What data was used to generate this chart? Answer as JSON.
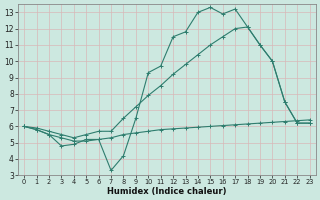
{
  "background_color": "#cce8e0",
  "grid_color": "#b8d8d0",
  "line_color": "#2e7d6e",
  "xlabel": "Humidex (Indice chaleur)",
  "xlim": [
    -0.5,
    23.5
  ],
  "ylim": [
    3,
    13.5
  ],
  "xticks": [
    0,
    1,
    2,
    3,
    4,
    5,
    6,
    7,
    8,
    9,
    10,
    11,
    12,
    13,
    14,
    15,
    16,
    17,
    18,
    19,
    20,
    21,
    22,
    23
  ],
  "yticks": [
    3,
    4,
    5,
    6,
    7,
    8,
    9,
    10,
    11,
    12,
    13
  ],
  "line1_x": [
    0,
    1,
    2,
    3,
    4,
    5,
    6,
    7,
    8,
    9,
    10,
    11,
    12,
    13,
    14,
    15,
    16,
    17,
    18,
    19,
    20,
    21,
    22,
    23
  ],
  "line1_y": [
    6.0,
    5.8,
    5.5,
    4.8,
    4.9,
    5.2,
    5.2,
    3.3,
    4.2,
    6.5,
    9.3,
    9.7,
    11.5,
    11.8,
    13.0,
    13.3,
    12.9,
    13.2,
    12.1,
    11.0,
    10.0,
    7.5,
    6.2,
    6.2
  ],
  "line2_x": [
    0,
    1,
    2,
    3,
    4,
    5,
    6,
    7,
    8,
    9,
    10,
    11,
    12,
    13,
    14,
    15,
    16,
    17,
    18,
    19,
    20,
    21,
    22,
    23
  ],
  "line2_y": [
    6.0,
    5.9,
    5.7,
    5.5,
    5.3,
    5.5,
    5.7,
    5.7,
    6.5,
    7.2,
    7.9,
    8.5,
    9.2,
    9.8,
    10.4,
    11.0,
    11.5,
    12.0,
    12.1,
    11.0,
    10.0,
    7.5,
    6.2,
    6.2
  ],
  "line3_x": [
    0,
    1,
    2,
    3,
    4,
    5,
    6,
    7,
    8,
    9,
    10,
    11,
    12,
    13,
    14,
    15,
    16,
    17,
    18,
    19,
    20,
    21,
    22,
    23
  ],
  "line3_y": [
    6.0,
    5.8,
    5.5,
    5.3,
    5.1,
    5.1,
    5.2,
    5.3,
    5.5,
    5.6,
    5.7,
    5.8,
    5.85,
    5.9,
    5.95,
    6.0,
    6.05,
    6.1,
    6.15,
    6.2,
    6.25,
    6.3,
    6.35,
    6.4
  ]
}
